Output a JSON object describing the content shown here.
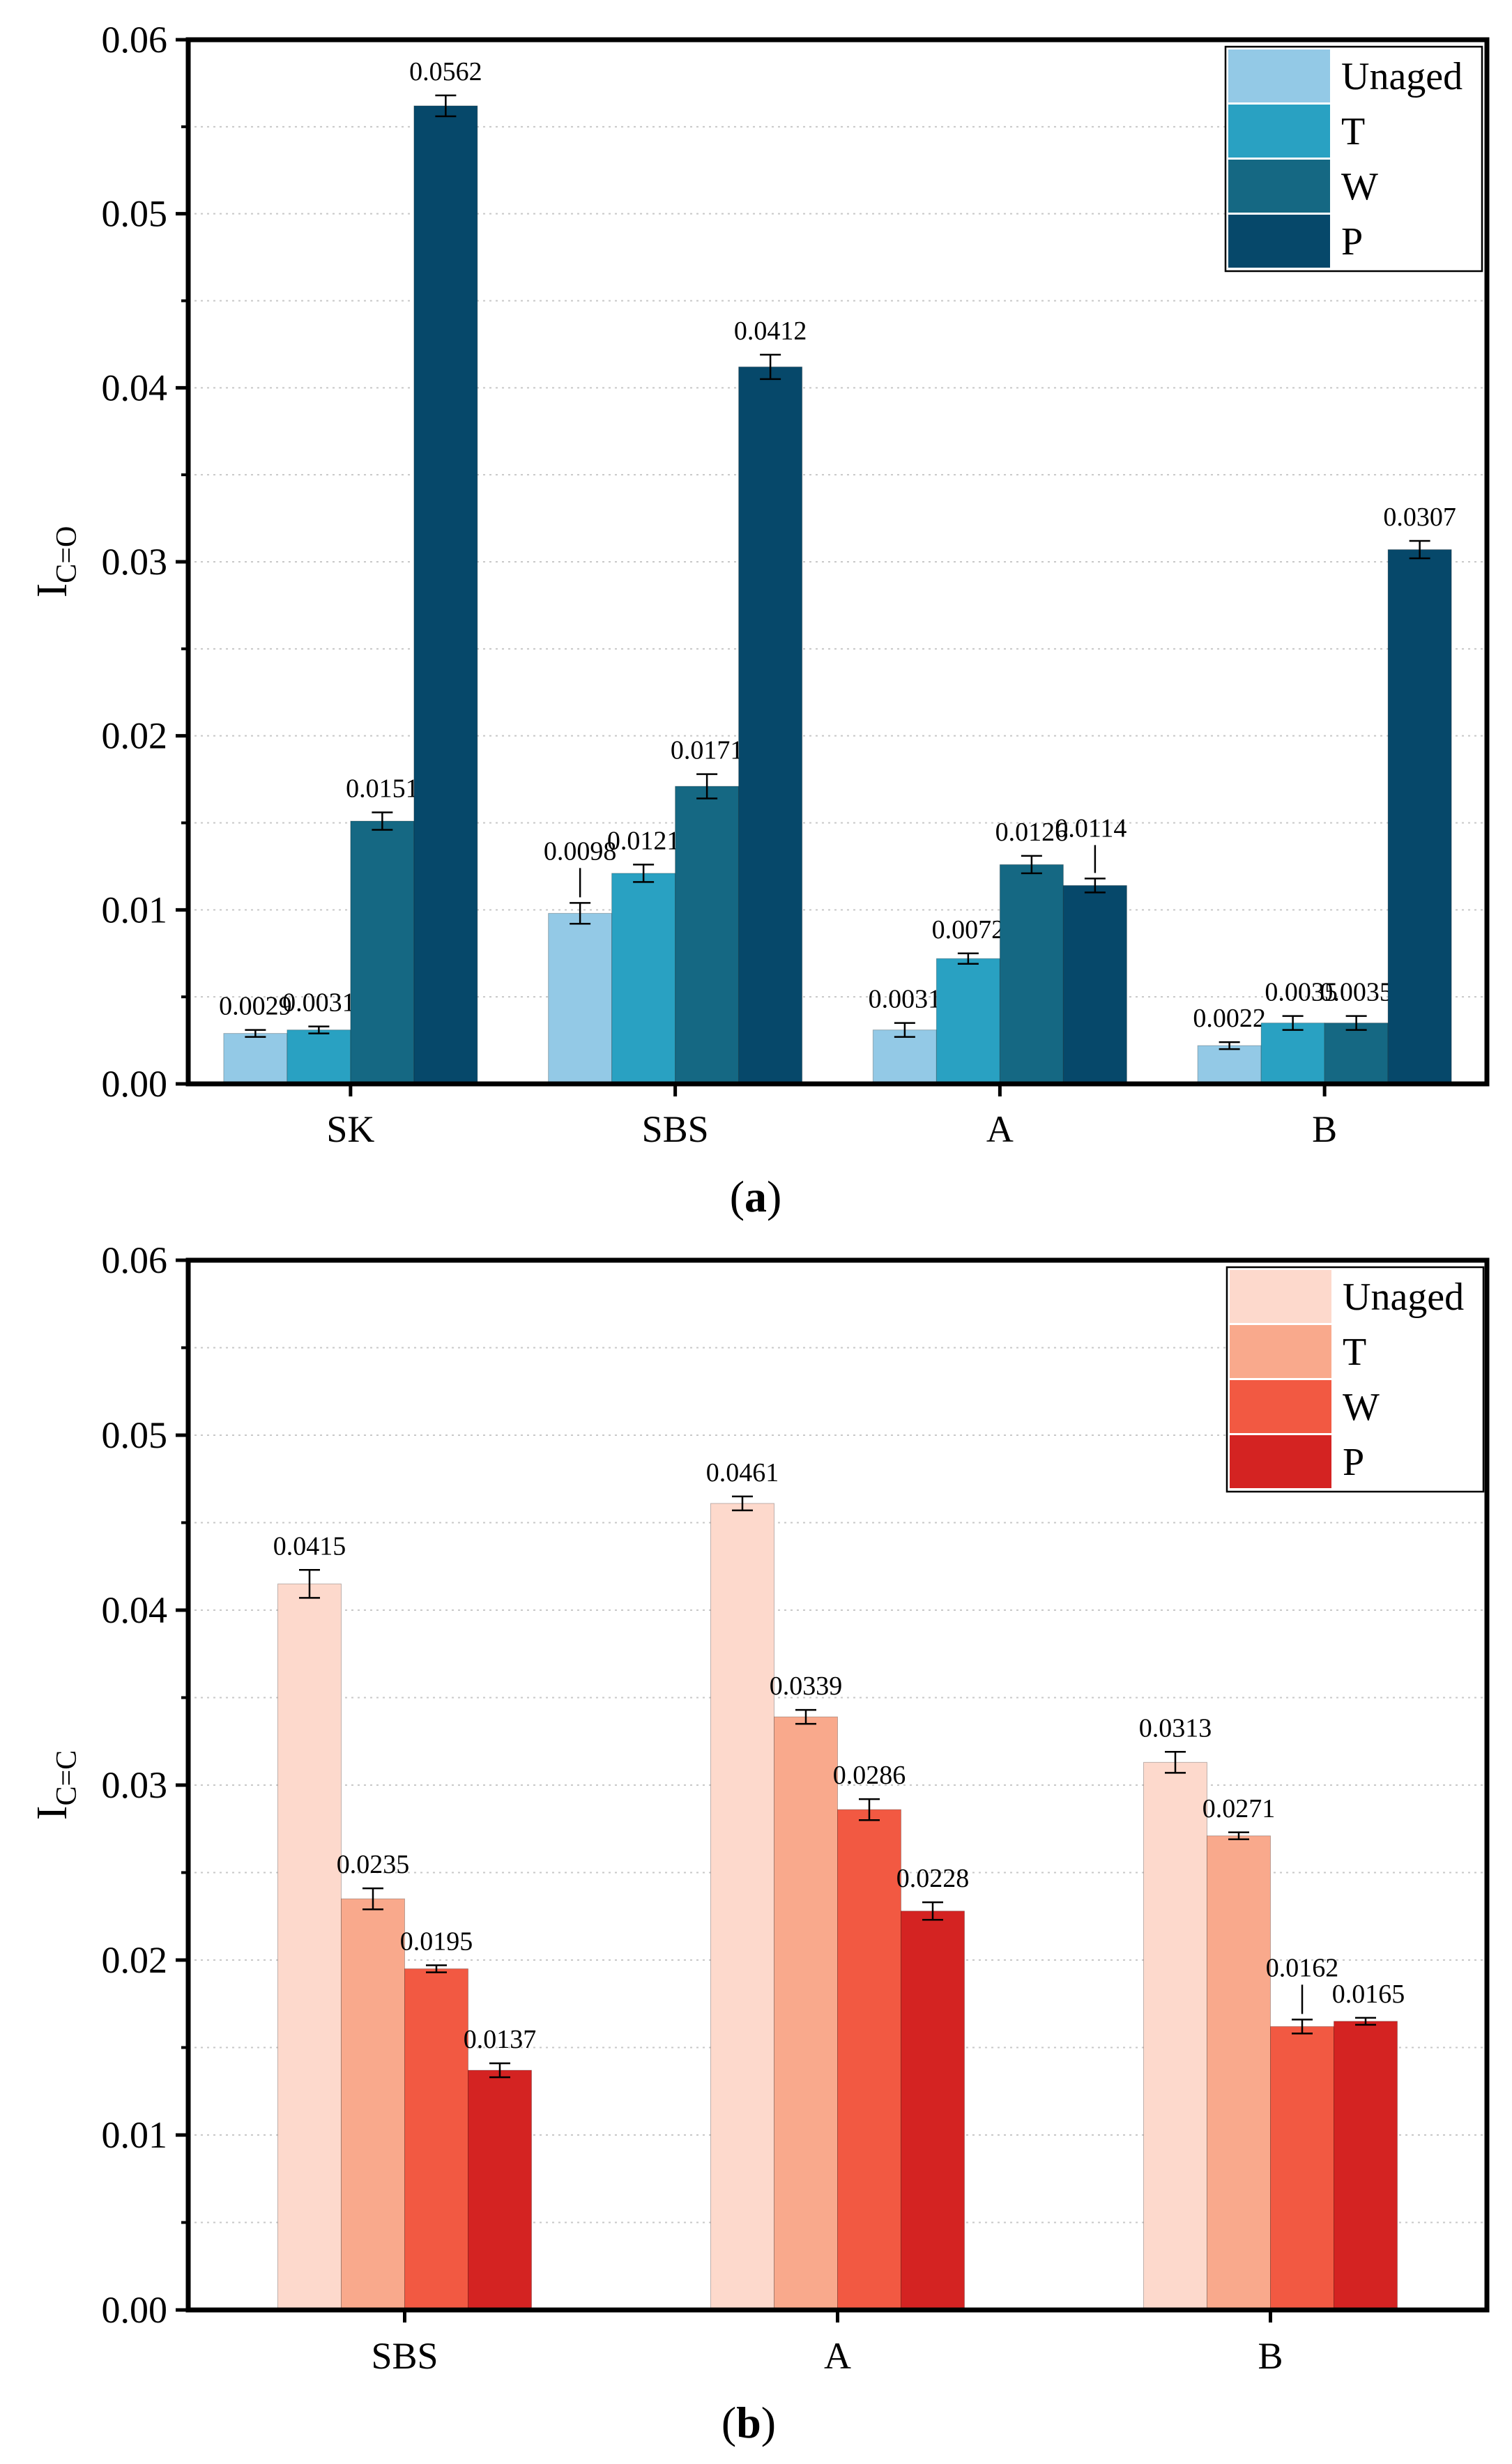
{
  "chart_data": [
    {
      "type": "bar",
      "panel_label": "a",
      "ylabel_main": "I",
      "ylabel_sub": "C=O",
      "xlabel": "",
      "ylim": [
        0,
        0.06
      ],
      "yticks": [
        "0.00",
        "0.01",
        "0.02",
        "0.03",
        "0.04",
        "0.05",
        "0.06"
      ],
      "categories": [
        "SK",
        "SBS",
        "A",
        "B"
      ],
      "legend_position": "top-right",
      "series": [
        {
          "name": "Unaged",
          "color": "#93c9e6",
          "values": [
            0.0029,
            0.0098,
            0.0031,
            0.0022
          ],
          "errors": [
            0.0002,
            0.0006,
            0.0004,
            0.0002
          ],
          "labels": [
            "0.0029",
            "0.0098",
            "0.0031",
            "0.0022"
          ]
        },
        {
          "name": "T",
          "color": "#29a1c2",
          "values": [
            0.0031,
            0.0121,
            0.0072,
            0.0035
          ],
          "errors": [
            0.0002,
            0.0005,
            0.0003,
            0.0004
          ],
          "labels": [
            "0.0031",
            "0.0121",
            "0.0072",
            "0.0035"
          ]
        },
        {
          "name": "W",
          "color": "#156883",
          "values": [
            0.0151,
            0.0171,
            0.0126,
            0.0035
          ],
          "errors": [
            0.0005,
            0.0007,
            0.0005,
            0.0004
          ],
          "labels": [
            "0.0151",
            "0.0171",
            "0.0126",
            "0.0035"
          ]
        },
        {
          "name": "P",
          "color": "#06486a",
          "values": [
            0.0562,
            0.0412,
            0.0114,
            0.0307
          ],
          "errors": [
            0.0006,
            0.0007,
            0.0004,
            0.0005
          ],
          "labels": [
            "0.0562",
            "0.0412",
            "0.0114",
            "0.0307"
          ]
        }
      ]
    },
    {
      "type": "bar",
      "panel_label": "b",
      "ylabel_main": "I",
      "ylabel_sub": "C=C",
      "xlabel": "",
      "ylim": [
        0,
        0.06
      ],
      "yticks": [
        "0.00",
        "0.01",
        "0.02",
        "0.03",
        "0.04",
        "0.05",
        "0.06"
      ],
      "categories": [
        "SBS",
        "A",
        "B"
      ],
      "legend_position": "top-right",
      "series": [
        {
          "name": "Unaged",
          "color": "#fdd9cc",
          "values": [
            0.0415,
            0.0461,
            0.0313
          ],
          "errors": [
            0.0008,
            0.0004,
            0.0006
          ],
          "labels": [
            "0.0415",
            "0.0461",
            "0.0313"
          ]
        },
        {
          "name": "T",
          "color": "#f9a98c",
          "values": [
            0.0235,
            0.0339,
            0.0271
          ],
          "errors": [
            0.0006,
            0.0004,
            0.0002
          ],
          "labels": [
            "0.0235",
            "0.0339",
            "0.0271"
          ]
        },
        {
          "name": "W",
          "color": "#f25942",
          "values": [
            0.0195,
            0.0286,
            0.0162
          ],
          "errors": [
            0.0002,
            0.0006,
            0.0004
          ],
          "labels": [
            "0.0195",
            "0.0286",
            "0.0162"
          ]
        },
        {
          "name": "P",
          "color": "#d42322",
          "values": [
            0.0137,
            0.0228,
            0.0165
          ],
          "errors": [
            0.0004,
            0.0005,
            0.0002
          ],
          "labels": [
            "0.0137",
            "0.0228",
            "0.0165"
          ]
        }
      ]
    }
  ]
}
